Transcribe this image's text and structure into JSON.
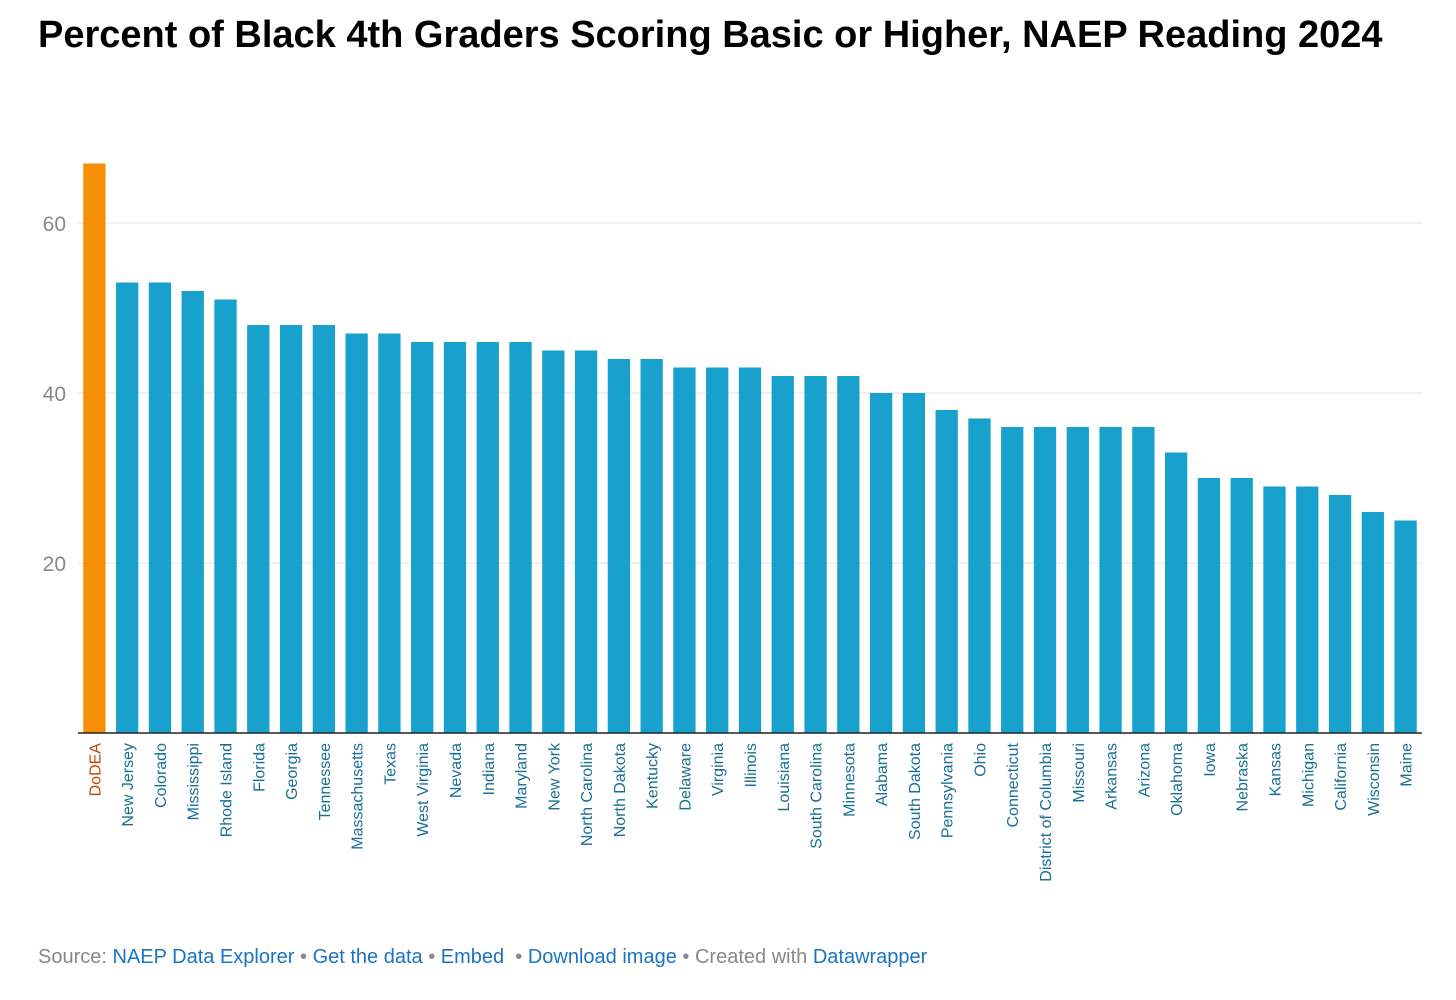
{
  "title": "Percent of Black 4th Graders Scoring Basic or Higher, NAEP Reading 2024",
  "chart_data": {
    "type": "bar",
    "title": "Percent of Black 4th Graders Scoring Basic or Higher, NAEP Reading 2024",
    "xlabel": "",
    "ylabel": "",
    "ylim": [
      0,
      67
    ],
    "yticks": [
      20,
      40,
      60
    ],
    "grid": true,
    "categories": [
      "DoDEA",
      "New Jersey",
      "Colorado",
      "Mississippi",
      "Rhode Island",
      "Florida",
      "Georgia",
      "Tennessee",
      "Massachusetts",
      "Texas",
      "West Virginia",
      "Nevada",
      "Indiana",
      "Maryland",
      "New York",
      "North Carolina",
      "North Dakota",
      "Kentucky",
      "Delaware",
      "Virginia",
      "Illinois",
      "Louisiana",
      "South Carolina",
      "Minnesota",
      "Alabama",
      "South Dakota",
      "Pennsylvania",
      "Ohio",
      "Connecticut",
      "District of Columbia",
      "Missouri",
      "Arkansas",
      "Arizona",
      "Oklahoma",
      "Iowa",
      "Nebraska",
      "Kansas",
      "Michigan",
      "California",
      "Wisconsin",
      "Maine"
    ],
    "values": [
      67,
      53,
      53,
      52,
      51,
      48,
      48,
      48,
      47,
      47,
      46,
      46,
      46,
      46,
      45,
      45,
      44,
      44,
      43,
      43,
      43,
      42,
      42,
      42,
      40,
      40,
      38,
      37,
      36,
      36,
      36,
      36,
      36,
      33,
      30,
      30,
      29,
      29,
      28,
      26,
      25
    ],
    "highlight": "DoDEA",
    "colors": {
      "bar": "#18a1cd",
      "highlight_bar": "#f68f06",
      "label": "#1a6e96",
      "highlight_label": "#c2450a",
      "grid": "#e0e0e0",
      "tick": "#888888",
      "baseline": "#222222"
    }
  },
  "footer": {
    "source_label": "Source:",
    "source_link": "NAEP Data Explorer",
    "get_data": "Get the data",
    "embed": "Embed",
    "download": "Download image",
    "created_with": "Created with",
    "datawrapper": "Datawrapper"
  }
}
